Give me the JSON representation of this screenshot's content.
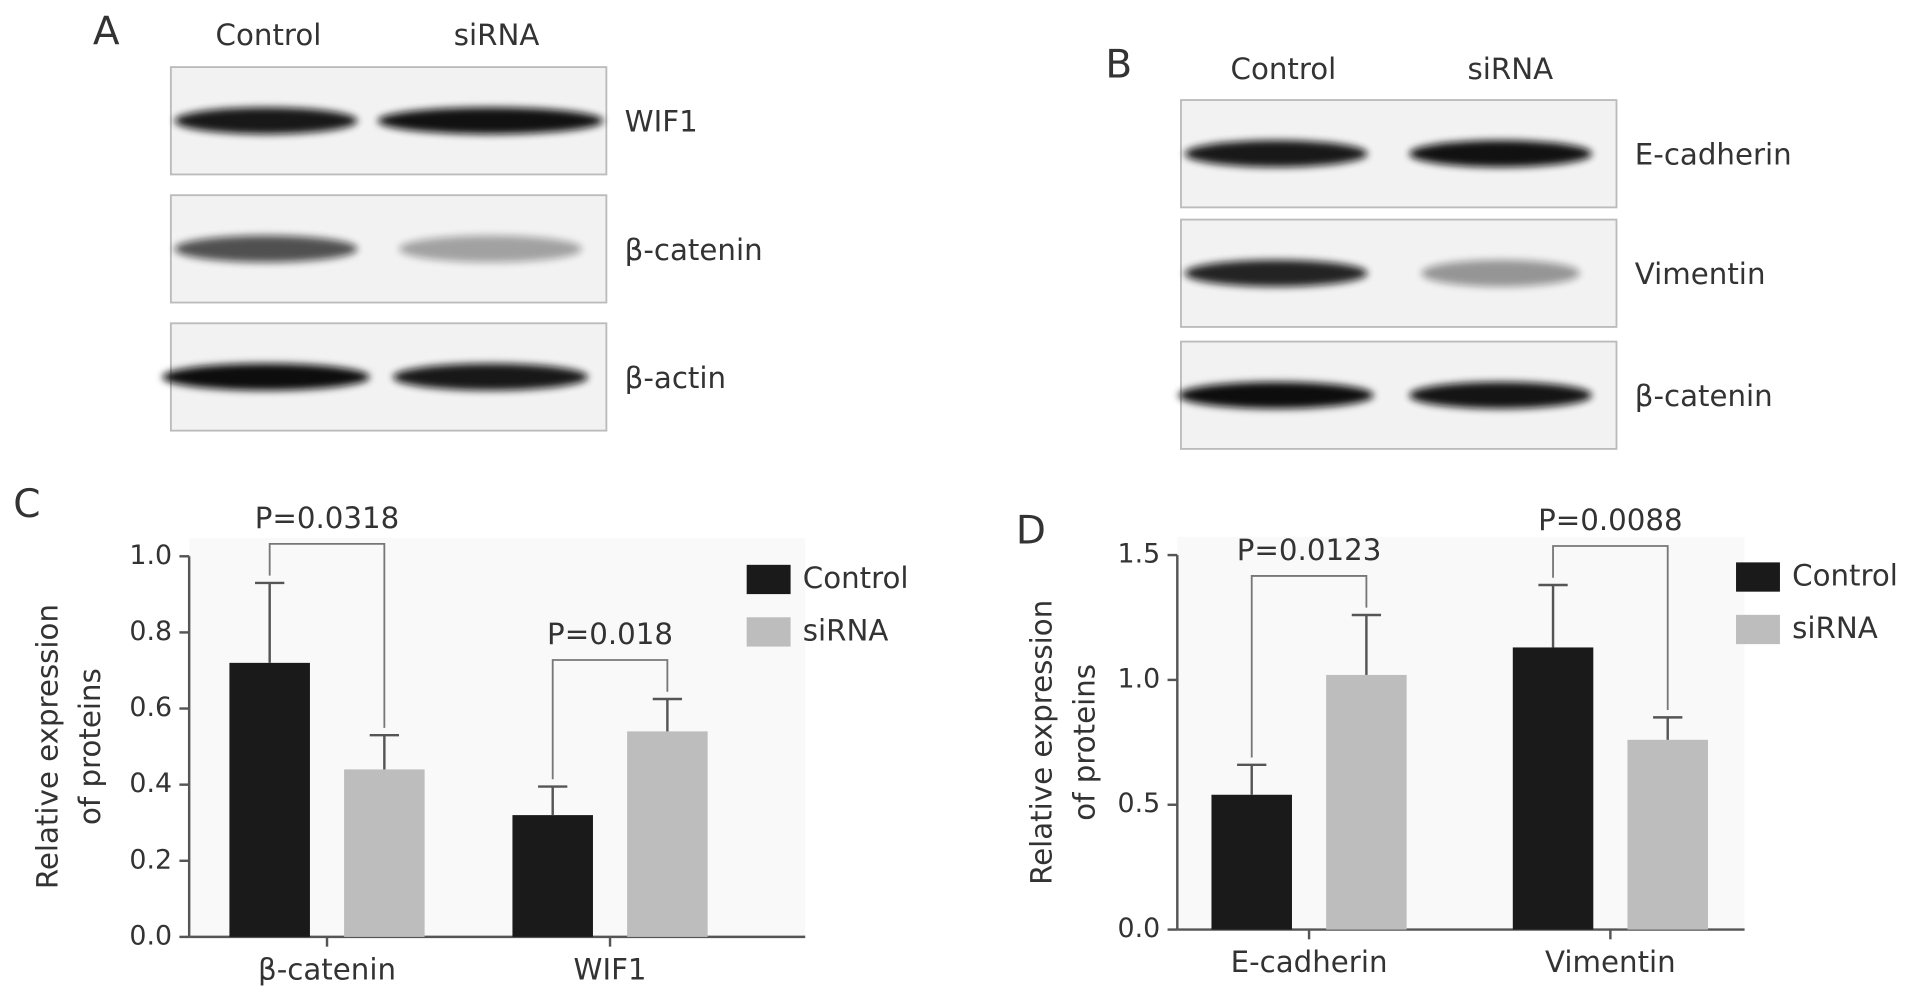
{
  "blots": [
    {
      "label": "A",
      "columns": [
        "Control",
        "siRNA"
      ],
      "rows": [
        "WIF1",
        "β-catenin",
        "β-actin"
      ]
    },
    {
      "label": "B",
      "columns": [
        "Control",
        "siRNA"
      ],
      "rows": [
        "E-cadherin",
        "Vimentin",
        "β-catenin"
      ]
    }
  ],
  "chart_data": [
    {
      "type": "bar",
      "label": "C",
      "y_label": [
        "Relative expression",
        "of proteins"
      ],
      "categories": [
        "β-catenin",
        "WIF1"
      ],
      "p_labels": [
        "P=0.0318",
        "P=0.018"
      ],
      "series": [
        {
          "name": "Control",
          "color": "#1a1a1a",
          "values": [
            0.72,
            0.32
          ],
          "errors": [
            0.21,
            0.075
          ]
        },
        {
          "name": "siRNA",
          "color": "#bdbdbd",
          "values": [
            0.44,
            0.54
          ],
          "errors": [
            0.09,
            0.085
          ]
        }
      ],
      "ylim": [
        0,
        1.0
      ],
      "yticks": [
        {
          "value": 0,
          "label": "0.0"
        },
        0.2,
        0.4,
        0.6,
        0.8,
        {
          "value": 1.0,
          "label": "1.0"
        }
      ]
    },
    {
      "type": "bar",
      "label": "D",
      "y_label": [
        "Relative expression",
        "of proteins"
      ],
      "categories": [
        "E-cadherin",
        "Vimentin"
      ],
      "p_labels": [
        "P=0.0123",
        "P=0.0088"
      ],
      "series": [
        {
          "name": "Control",
          "color": "#1a1a1a",
          "values": [
            0.54,
            1.13
          ],
          "errors": [
            0.12,
            0.25
          ]
        },
        {
          "name": "siRNA",
          "color": "#bdbdbd",
          "values": [
            1.02,
            0.76
          ],
          "errors": [
            0.24,
            0.09
          ]
        }
      ],
      "ylim": [
        0,
        1.5
      ],
      "yticks": [
        {
          "value": 0,
          "label": "0.0"
        },
        0.5,
        {
          "value": 1.0,
          "label": "1.0"
        },
        1.5
      ]
    }
  ]
}
